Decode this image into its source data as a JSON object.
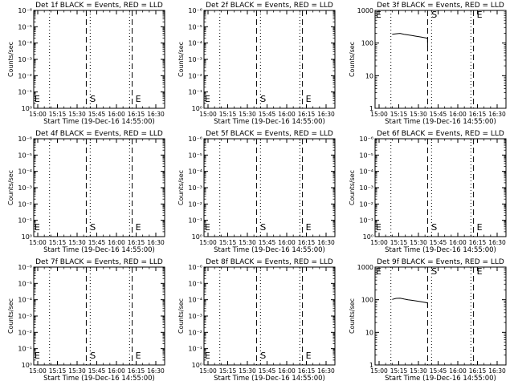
{
  "chart_data": [
    {
      "type": "line",
      "title": "Det 1f BLACK = Events, RED = LLD",
      "xlabel": "Start Time (19-Dec-16 14:55:00)",
      "ylabel": "Counts/sec",
      "ylog": true,
      "ylim": [
        1,
        1e-06
      ],
      "yticks": [
        "10⁰",
        "10⁻¹",
        "10⁻²",
        "10⁻³",
        "10⁻⁴",
        "10⁻⁵",
        "10⁻⁶"
      ],
      "xticks": [
        "15:00",
        "15:15",
        "15:30",
        "15:45",
        "16:00",
        "16:15",
        "16:30"
      ],
      "xlim_min": [
        -6,
        95
      ],
      "dotted_lines_min": [
        9,
        40,
        70,
        101
      ],
      "dashed_lines_min": [
        37,
        72
      ],
      "markers": [
        {
          "text": "E",
          "t_min": -5
        },
        {
          "text": "S",
          "t_min": 37.5
        },
        {
          "text": "E",
          "t_min": 72
        }
      ],
      "series": []
    },
    {
      "type": "line",
      "title": "Det 2f BLACK = Events, RED = LLD",
      "xlabel": "Start Time (19-Dec-16 14:55:00)",
      "ylabel": "Counts/sec",
      "ylog": true,
      "ylim": [
        1,
        1e-06
      ],
      "yticks": [
        "10⁰",
        "10⁻¹",
        "10⁻²",
        "10⁻³",
        "10⁻⁴",
        "10⁻⁵",
        "10⁻⁶"
      ],
      "xticks": [
        "15:00",
        "15:15",
        "15:30",
        "15:45",
        "16:00",
        "16:15",
        "16:30"
      ],
      "xlim_min": [
        -6,
        95
      ],
      "dotted_lines_min": [
        9,
        40,
        70,
        101
      ],
      "dashed_lines_min": [
        37,
        72
      ],
      "markers": [
        {
          "text": "E",
          "t_min": -5
        },
        {
          "text": "S",
          "t_min": 37.5
        },
        {
          "text": "E",
          "t_min": 72
        }
      ],
      "series": []
    },
    {
      "type": "line",
      "title": "Det 3f BLACK = Events, RED = LLD",
      "xlabel": "Start Time (19-Dec-16 14:55:00)",
      "ylabel": "Counts/sec",
      "ylog": true,
      "ylim": [
        1,
        1000
      ],
      "yticks": [
        "1",
        "10",
        "100",
        "1000"
      ],
      "xticks": [
        "15:00",
        "15:15",
        "15:30",
        "15:45",
        "16:00",
        "16:15",
        "16:30"
      ],
      "xlim_min": [
        -6,
        95
      ],
      "dotted_lines_min": [
        9,
        40,
        70,
        101
      ],
      "dashed_lines_min": [
        37,
        72
      ],
      "markers": [
        {
          "text": "E",
          "t_min": -5
        },
        {
          "text": "S",
          "t_min": 37.5
        },
        {
          "text": "E",
          "t_min": 72
        }
      ],
      "series": [
        {
          "x": [
            10,
            13,
            16,
            19,
            22,
            25,
            28,
            31,
            34,
            37,
            37
          ],
          "y": [
            185,
            192,
            198,
            186,
            178,
            170,
            162,
            155,
            148,
            140,
            80
          ]
        }
      ]
    },
    {
      "type": "line",
      "title": "Det 4f BLACK = Events, RED = LLD",
      "xlabel": "Start Time (19-Dec-16 14:55:00)",
      "ylabel": "Counts/sec",
      "ylog": true,
      "ylim": [
        1,
        1e-06
      ],
      "yticks": [
        "10⁰",
        "10⁻¹",
        "10⁻²",
        "10⁻³",
        "10⁻⁴",
        "10⁻⁵",
        "10⁻⁶"
      ],
      "xticks": [
        "15:00",
        "15:15",
        "15:30",
        "15:45",
        "16:00",
        "16:15",
        "16:30"
      ],
      "xlim_min": [
        -6,
        95
      ],
      "dotted_lines_min": [
        9,
        40,
        70,
        101
      ],
      "dashed_lines_min": [
        37,
        72
      ],
      "markers": [
        {
          "text": "E",
          "t_min": -5
        },
        {
          "text": "S",
          "t_min": 37.5
        },
        {
          "text": "E",
          "t_min": 72
        }
      ],
      "series": []
    },
    {
      "type": "line",
      "title": "Det 5f BLACK = Events, RED = LLD",
      "xlabel": "Start Time (19-Dec-16 14:55:00)",
      "ylabel": "Counts/sec",
      "ylog": true,
      "ylim": [
        1,
        1e-06
      ],
      "yticks": [
        "10⁰",
        "10⁻¹",
        "10⁻²",
        "10⁻³",
        "10⁻⁴",
        "10⁻⁵",
        "10⁻⁶"
      ],
      "xticks": [
        "15:00",
        "15:15",
        "15:30",
        "15:45",
        "16:00",
        "16:15",
        "16:30"
      ],
      "xlim_min": [
        -6,
        95
      ],
      "dotted_lines_min": [
        9,
        40,
        70,
        101
      ],
      "dashed_lines_min": [
        37,
        72
      ],
      "markers": [
        {
          "text": "E",
          "t_min": -5
        },
        {
          "text": "S",
          "t_min": 37.5
        },
        {
          "text": "E",
          "t_min": 72
        }
      ],
      "series": []
    },
    {
      "type": "line",
      "title": "Det 6f BLACK = Events, RED = LLD",
      "xlabel": "Start Time (19-Dec-16 14:55:00)",
      "ylabel": "Counts/sec",
      "ylog": true,
      "ylim": [
        1,
        1e-06
      ],
      "yticks": [
        "10⁰",
        "10⁻¹",
        "10⁻²",
        "10⁻³",
        "10⁻⁴",
        "10⁻⁵",
        "10⁻⁶"
      ],
      "xticks": [
        "15:00",
        "15:15",
        "15:30",
        "15:45",
        "16:00",
        "16:15",
        "16:30"
      ],
      "xlim_min": [
        -6,
        95
      ],
      "dotted_lines_min": [
        9,
        40,
        70,
        101
      ],
      "dashed_lines_min": [
        37,
        72
      ],
      "markers": [
        {
          "text": "E",
          "t_min": -5
        },
        {
          "text": "S",
          "t_min": 37.5
        },
        {
          "text": "E",
          "t_min": 72
        }
      ],
      "series": []
    },
    {
      "type": "line",
      "title": "Det 7f BLACK = Events, RED = LLD",
      "xlabel": "Start Time (19-Dec-16 14:55:00)",
      "ylabel": "Counts/sec",
      "ylog": true,
      "ylim": [
        1,
        1e-06
      ],
      "yticks": [
        "10⁰",
        "10⁻¹",
        "10⁻²",
        "10⁻³",
        "10⁻⁴",
        "10⁻⁵",
        "10⁻⁶"
      ],
      "xticks": [
        "15:00",
        "15:15",
        "15:30",
        "15:45",
        "16:00",
        "16:15",
        "16:30"
      ],
      "xlim_min": [
        -6,
        95
      ],
      "dotted_lines_min": [
        9,
        40,
        70,
        101
      ],
      "dashed_lines_min": [
        37,
        72
      ],
      "markers": [
        {
          "text": "E",
          "t_min": -5
        },
        {
          "text": "S",
          "t_min": 37.5
        },
        {
          "text": "E",
          "t_min": 72
        }
      ],
      "series": []
    },
    {
      "type": "line",
      "title": "Det 8f BLACK = Events, RED = LLD",
      "xlabel": "Start Time (19-Dec-16 14:55:00)",
      "ylabel": "Counts/sec",
      "ylog": true,
      "ylim": [
        1,
        1e-06
      ],
      "yticks": [
        "10⁰",
        "10⁻¹",
        "10⁻²",
        "10⁻³",
        "10⁻⁴",
        "10⁻⁵",
        "10⁻⁶"
      ],
      "xticks": [
        "15:00",
        "15:15",
        "15:30",
        "15:45",
        "16:00",
        "16:15",
        "16:30"
      ],
      "xlim_min": [
        -6,
        95
      ],
      "dotted_lines_min": [
        9,
        40,
        70,
        101
      ],
      "dashed_lines_min": [
        37,
        72
      ],
      "markers": [
        {
          "text": "E",
          "t_min": -5
        },
        {
          "text": "S",
          "t_min": 37.5
        },
        {
          "text": "E",
          "t_min": 72
        }
      ],
      "series": []
    },
    {
      "type": "line",
      "title": "Det 9f BLACK = Events, RED = LLD",
      "xlabel": "Start Time (19-Dec-16 14:55:00)",
      "ylabel": "Counts/sec",
      "ylog": true,
      "ylim": [
        1,
        1000
      ],
      "yticks": [
        "1",
        "10",
        "100",
        "1000"
      ],
      "xticks": [
        "15:00",
        "15:15",
        "15:30",
        "15:45",
        "16:00",
        "16:15",
        "16:30"
      ],
      "xlim_min": [
        -6,
        95
      ],
      "dotted_lines_min": [
        9,
        40,
        70,
        101
      ],
      "dashed_lines_min": [
        37,
        72
      ],
      "markers": [
        {
          "text": "E",
          "t_min": -5
        },
        {
          "text": "S",
          "t_min": 37.5
        },
        {
          "text": "E",
          "t_min": 72
        }
      ],
      "series": [
        {
          "x": [
            10,
            13,
            16,
            19,
            22,
            25,
            28,
            31,
            34,
            37,
            37
          ],
          "y": [
            102,
            110,
            112,
            105,
            100,
            96,
            92,
            88,
            84,
            80,
            60
          ]
        }
      ]
    }
  ]
}
